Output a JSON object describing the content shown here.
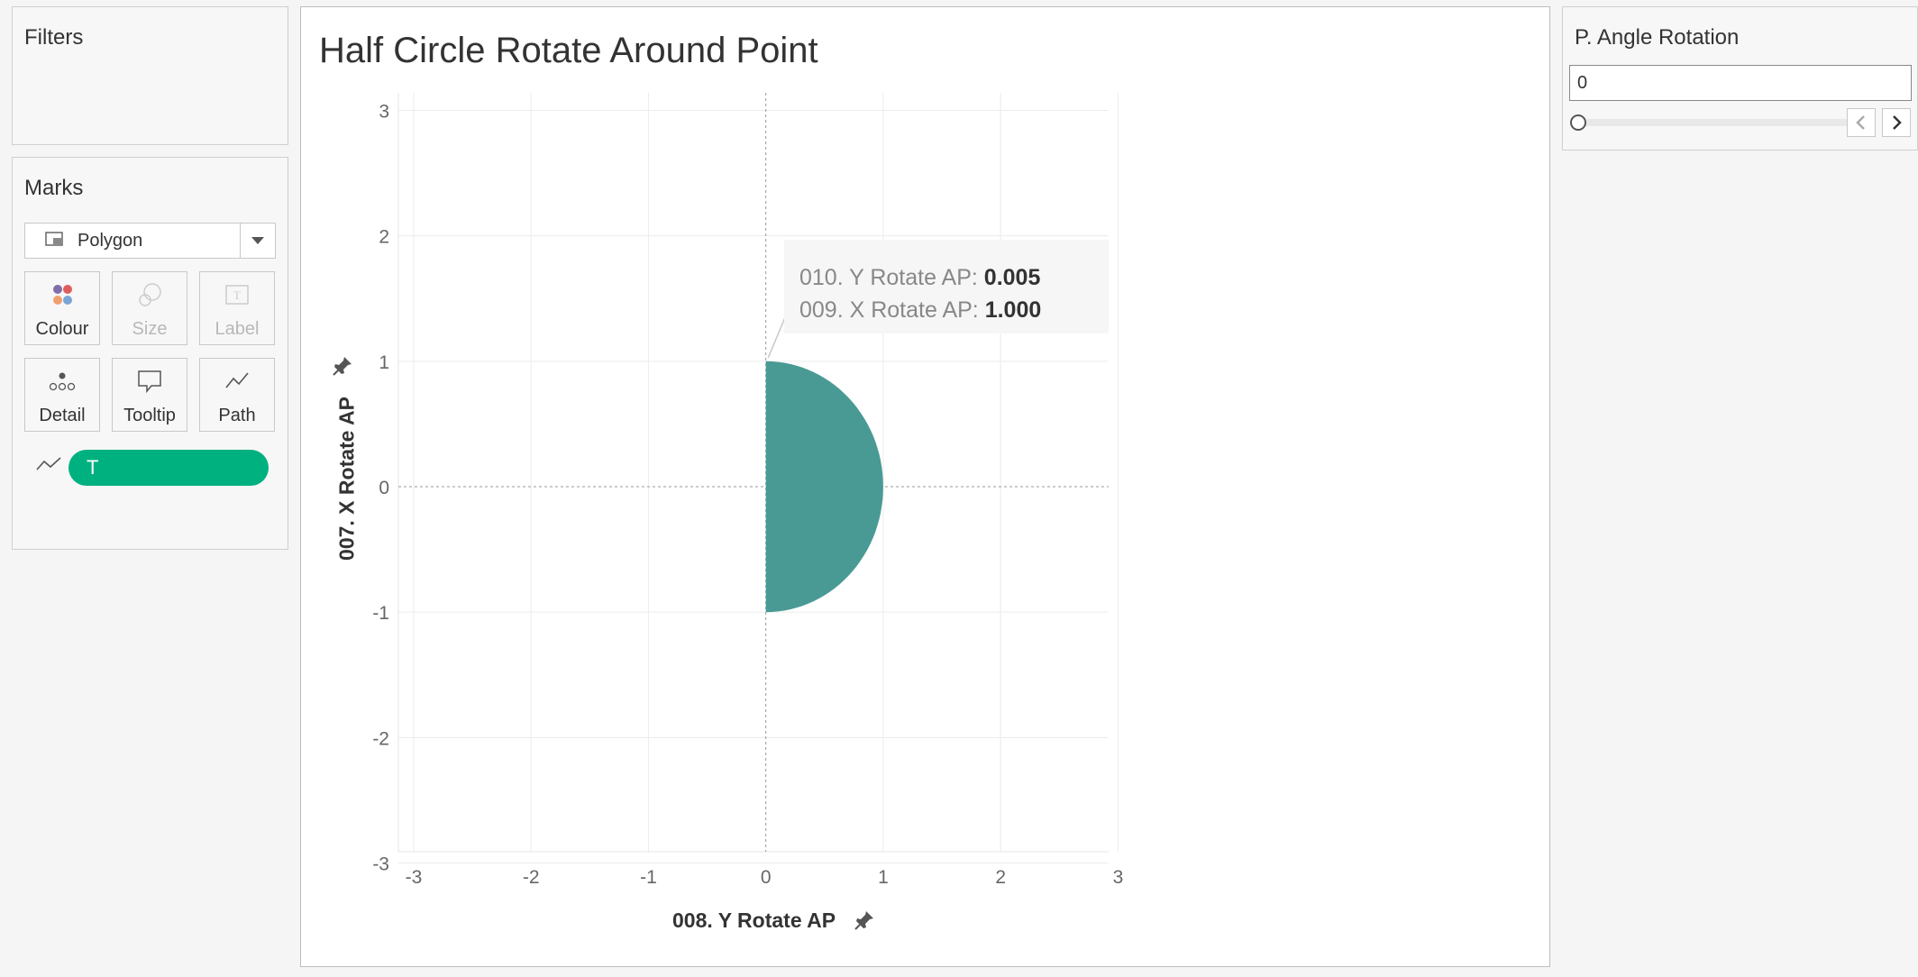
{
  "filters": {
    "title": "Filters"
  },
  "marks": {
    "title": "Marks",
    "mark_type": "Polygon",
    "buttons": {
      "colour": "Colour",
      "size": "Size",
      "label": "Label",
      "detail": "Detail",
      "tooltip": "Tooltip",
      "path": "Path"
    },
    "path_pill": "T"
  },
  "viz": {
    "title": "Half Circle Rotate Around Point",
    "tooltip": {
      "line1_label": "010. Y Rotate AP:",
      "line1_value": "0.005",
      "line2_label": "009. X Rotate AP:",
      "line2_value": "1.000"
    }
  },
  "parameter": {
    "title": "P. Angle Rotation",
    "value": "0"
  },
  "colors": {
    "mark_fill": "#499a94",
    "pill": "#00b180"
  },
  "chart_data": {
    "type": "area",
    "title": "Half Circle Rotate Around Point",
    "xlabel": "008. Y Rotate AP",
    "ylabel": "007. X Rotate AP",
    "xlim": [
      -3,
      3
    ],
    "ylim": [
      -3,
      3
    ],
    "x_ticks": [
      "-3",
      "-2",
      "-1",
      "0",
      "1",
      "2",
      "3"
    ],
    "y_ticks": [
      "3",
      "2",
      "1",
      "0",
      "-1",
      "-2",
      "-3"
    ],
    "grid": true,
    "shape": "half-circle",
    "center": [
      0,
      0
    ],
    "radius": 1,
    "angle_start_deg": -90,
    "angle_end_deg": 90,
    "highlighted_point": {
      "x": 0.005,
      "y": 1.0
    }
  }
}
